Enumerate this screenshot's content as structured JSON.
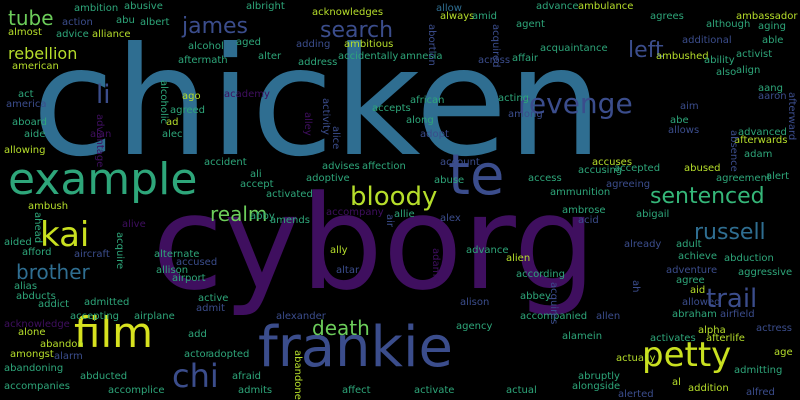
{
  "words": [
    {
      "text": "chicken",
      "size": 150,
      "color": "#2f6e91"
    },
    {
      "text": "cyborg",
      "size": 130,
      "color": "#3f0f5f"
    },
    {
      "text": "frankie",
      "size": 56,
      "color": "#3b4d8c"
    },
    {
      "text": "example",
      "size": 44,
      "color": "#2ea67a"
    },
    {
      "text": "te",
      "size": 56,
      "color": "#3b4d8c"
    },
    {
      "text": "revenge",
      "size": 28,
      "color": "#3b4d8c"
    },
    {
      "text": "film",
      "size": 42,
      "color": "#d7e21f"
    },
    {
      "text": "petty",
      "size": 34,
      "color": "#c9e020"
    },
    {
      "text": "bloody",
      "size": 26,
      "color": "#b6de2b"
    },
    {
      "text": "sentenced",
      "size": 22,
      "color": "#35b779"
    },
    {
      "text": "kai",
      "size": 34,
      "color": "#c9e020"
    },
    {
      "text": "chi",
      "size": 32,
      "color": "#3b4d8c"
    },
    {
      "text": "trail",
      "size": 26,
      "color": "#3b4d8c"
    },
    {
      "text": "search",
      "size": 22,
      "color": "#3b4d8c"
    },
    {
      "text": "james",
      "size": 22,
      "color": "#3b4d8c"
    },
    {
      "text": "russell",
      "size": 22,
      "color": "#2f6e91"
    },
    {
      "text": "realm",
      "size": 20,
      "color": "#6ccd5a"
    },
    {
      "text": "brother",
      "size": 20,
      "color": "#2f6e91"
    },
    {
      "text": "death",
      "size": 20,
      "color": "#6ccd5a"
    },
    {
      "text": "left",
      "size": 22,
      "color": "#3b4d8c"
    },
    {
      "text": "tube",
      "size": 20,
      "color": "#6ccd5a"
    },
    {
      "text": "rebellion",
      "size": 16,
      "color": "#b6de2b"
    },
    {
      "text": "li",
      "size": 26,
      "color": "#3b4d8c"
    },
    {
      "text": "ambulance",
      "size": 10,
      "color": "#b6de2b"
    },
    {
      "text": "ambition",
      "size": 10,
      "color": "#2ea67a"
    },
    {
      "text": "abusive",
      "size": 10,
      "color": "#2ea67a"
    },
    {
      "text": "albright",
      "size": 10,
      "color": "#2ea67a"
    },
    {
      "text": "acknowledges",
      "size": 10,
      "color": "#b6de2b"
    },
    {
      "text": "allow",
      "size": 10,
      "color": "#2f6e91"
    },
    {
      "text": "advance",
      "size": 10,
      "color": "#2ea67a"
    },
    {
      "text": "agrees",
      "size": 10,
      "color": "#2ea67a"
    },
    {
      "text": "ambassador",
      "size": 10,
      "color": "#b6de2b"
    },
    {
      "text": "action",
      "size": 10,
      "color": "#3b4d8c"
    },
    {
      "text": "abu",
      "size": 10,
      "color": "#2ea67a"
    },
    {
      "text": "albert",
      "size": 10,
      "color": "#2ea67a"
    },
    {
      "text": "always",
      "size": 10,
      "color": "#b6de2b"
    },
    {
      "text": "amid",
      "size": 10,
      "color": "#2ea67a"
    },
    {
      "text": "agent",
      "size": 10,
      "color": "#2ea67a"
    },
    {
      "text": "although",
      "size": 10,
      "color": "#2ea67a"
    },
    {
      "text": "aging",
      "size": 10,
      "color": "#2ea67a"
    },
    {
      "text": "almost",
      "size": 10,
      "color": "#b6de2b"
    },
    {
      "text": "advice",
      "size": 10,
      "color": "#2ea67a"
    },
    {
      "text": "alliance",
      "size": 10,
      "color": "#b6de2b"
    },
    {
      "text": "aged",
      "size": 10,
      "color": "#2ea67a"
    },
    {
      "text": "adding",
      "size": 10,
      "color": "#3b4d8c"
    },
    {
      "text": "ambitious",
      "size": 10,
      "color": "#b6de2b"
    },
    {
      "text": "additional",
      "size": 10,
      "color": "#3b4d8c"
    },
    {
      "text": "able",
      "size": 10,
      "color": "#2ea67a"
    },
    {
      "text": "alcohol",
      "size": 10,
      "color": "#2ea67a"
    },
    {
      "text": "acquaintance",
      "size": 10,
      "color": "#2ea67a"
    },
    {
      "text": "activist",
      "size": 10,
      "color": "#2ea67a"
    },
    {
      "text": "alter",
      "size": 10,
      "color": "#2ea67a"
    },
    {
      "text": "accidentally",
      "size": 10,
      "color": "#2ea67a"
    },
    {
      "text": "amnesia",
      "size": 10,
      "color": "#2ea67a"
    },
    {
      "text": "ambushed",
      "size": 10,
      "color": "#b6de2b"
    },
    {
      "text": "ability",
      "size": 10,
      "color": "#2ea67a"
    },
    {
      "text": "american",
      "size": 10,
      "color": "#b6de2b"
    },
    {
      "text": "aftermath",
      "size": 10,
      "color": "#2ea67a"
    },
    {
      "text": "address",
      "size": 10,
      "color": "#2ea67a"
    },
    {
      "text": "across",
      "size": 10,
      "color": "#3b4d8c"
    },
    {
      "text": "affair",
      "size": 10,
      "color": "#2ea67a"
    },
    {
      "text": "align",
      "size": 10,
      "color": "#2ea67a"
    },
    {
      "text": "also",
      "size": 10,
      "color": "#2ea67a"
    },
    {
      "text": "act",
      "size": 10,
      "color": "#2ea67a"
    },
    {
      "text": "america",
      "size": 10,
      "color": "#3b4d8c"
    },
    {
      "text": "ago",
      "size": 10,
      "color": "#b6de2b"
    },
    {
      "text": "academy",
      "size": 10,
      "color": "#3f0f5f"
    },
    {
      "text": "african",
      "size": 10,
      "color": "#2ea67a"
    },
    {
      "text": "acting",
      "size": 10,
      "color": "#2ea67a"
    },
    {
      "text": "aang",
      "size": 10,
      "color": "#2ea67a"
    },
    {
      "text": "aaron",
      "size": 10,
      "color": "#3b4d8c"
    },
    {
      "text": "agreed",
      "size": 10,
      "color": "#2ea67a"
    },
    {
      "text": "accepts",
      "size": 10,
      "color": "#2ea67a"
    },
    {
      "text": "among",
      "size": 10,
      "color": "#3b4d8c"
    },
    {
      "text": "aim",
      "size": 10,
      "color": "#3b4d8c"
    },
    {
      "text": "aboard",
      "size": 10,
      "color": "#2ea67a"
    },
    {
      "text": "ad",
      "size": 10,
      "color": "#b6de2b"
    },
    {
      "text": "along",
      "size": 10,
      "color": "#2ea67a"
    },
    {
      "text": "abe",
      "size": 10,
      "color": "#2ea67a"
    },
    {
      "text": "aide",
      "size": 10,
      "color": "#2ea67a"
    },
    {
      "text": "alan",
      "size": 10,
      "color": "#3f0f5f"
    },
    {
      "text": "alec",
      "size": 10,
      "color": "#2ea67a"
    },
    {
      "text": "adopt",
      "size": 10,
      "color": "#3b4d8c"
    },
    {
      "text": "allows",
      "size": 10,
      "color": "#3b4d8c"
    },
    {
      "text": "advanced",
      "size": 10,
      "color": "#2ea67a"
    },
    {
      "text": "allowing",
      "size": 10,
      "color": "#b6de2b"
    },
    {
      "text": "afterwards",
      "size": 10,
      "color": "#b6de2b"
    },
    {
      "text": "adam",
      "size": 10,
      "color": "#2ea67a"
    },
    {
      "text": "accident",
      "size": 10,
      "color": "#2ea67a"
    },
    {
      "text": "advises",
      "size": 10,
      "color": "#2ea67a"
    },
    {
      "text": "affection",
      "size": 10,
      "color": "#2ea67a"
    },
    {
      "text": "account",
      "size": 10,
      "color": "#3b4d8c"
    },
    {
      "text": "accuses",
      "size": 10,
      "color": "#b6de2b"
    },
    {
      "text": "accepted",
      "size": 10,
      "color": "#2ea67a"
    },
    {
      "text": "abused",
      "size": 10,
      "color": "#b6de2b"
    },
    {
      "text": "ali",
      "size": 10,
      "color": "#2ea67a"
    },
    {
      "text": "accusing",
      "size": 10,
      "color": "#2ea67a"
    },
    {
      "text": "agreeing",
      "size": 10,
      "color": "#3b4d8c"
    },
    {
      "text": "agreement",
      "size": 10,
      "color": "#2ea67a"
    },
    {
      "text": "alert",
      "size": 10,
      "color": "#2ea67a"
    },
    {
      "text": "accept",
      "size": 10,
      "color": "#2ea67a"
    },
    {
      "text": "adoptive",
      "size": 10,
      "color": "#2ea67a"
    },
    {
      "text": "abuse",
      "size": 10,
      "color": "#2ea67a"
    },
    {
      "text": "access",
      "size": 10,
      "color": "#2ea67a"
    },
    {
      "text": "ambush",
      "size": 10,
      "color": "#b6de2b"
    },
    {
      "text": "activated",
      "size": 10,
      "color": "#2ea67a"
    },
    {
      "text": "ammunition",
      "size": 10,
      "color": "#2ea67a"
    },
    {
      "text": "abby",
      "size": 10,
      "color": "#2ea67a"
    },
    {
      "text": "amends",
      "size": 10,
      "color": "#2ea67a"
    },
    {
      "text": "accompany",
      "size": 10,
      "color": "#3f0f5f"
    },
    {
      "text": "allie",
      "size": 10,
      "color": "#2ea67a"
    },
    {
      "text": "alex",
      "size": 10,
      "color": "#3b4d8c"
    },
    {
      "text": "ambrose",
      "size": 10,
      "color": "#2ea67a"
    },
    {
      "text": "abigail",
      "size": 10,
      "color": "#2ea67a"
    },
    {
      "text": "aided",
      "size": 10,
      "color": "#2ea67a"
    },
    {
      "text": "alive",
      "size": 10,
      "color": "#3f0f5f"
    },
    {
      "text": "acid",
      "size": 10,
      "color": "#3b4d8c"
    },
    {
      "text": "already",
      "size": 10,
      "color": "#3b4d8c"
    },
    {
      "text": "afford",
      "size": 10,
      "color": "#2ea67a"
    },
    {
      "text": "aircraft",
      "size": 10,
      "color": "#3b4d8c"
    },
    {
      "text": "alternate",
      "size": 10,
      "color": "#2ea67a"
    },
    {
      "text": "ally",
      "size": 10,
      "color": "#b6de2b"
    },
    {
      "text": "advance",
      "size": 10,
      "color": "#2ea67a"
    },
    {
      "text": "adult",
      "size": 10,
      "color": "#2ea67a"
    },
    {
      "text": "abduction",
      "size": 10,
      "color": "#2ea67a"
    },
    {
      "text": "achieve",
      "size": 10,
      "color": "#2ea67a"
    },
    {
      "text": "accused",
      "size": 10,
      "color": "#3b4d8c"
    },
    {
      "text": "alien",
      "size": 10,
      "color": "#b6de2b"
    },
    {
      "text": "alias",
      "size": 10,
      "color": "#2ea67a"
    },
    {
      "text": "allison",
      "size": 10,
      "color": "#2ea67a"
    },
    {
      "text": "altar",
      "size": 10,
      "color": "#3b4d8c"
    },
    {
      "text": "according",
      "size": 10,
      "color": "#2ea67a"
    },
    {
      "text": "adventure",
      "size": 10,
      "color": "#3b4d8c"
    },
    {
      "text": "aggressive",
      "size": 10,
      "color": "#2ea67a"
    },
    {
      "text": "abducts",
      "size": 10,
      "color": "#2ea67a"
    },
    {
      "text": "airport",
      "size": 10,
      "color": "#2ea67a"
    },
    {
      "text": "agree",
      "size": 10,
      "color": "#2ea67a"
    },
    {
      "text": "addict",
      "size": 10,
      "color": "#2ea67a"
    },
    {
      "text": "admitted",
      "size": 10,
      "color": "#2ea67a"
    },
    {
      "text": "active",
      "size": 10,
      "color": "#2ea67a"
    },
    {
      "text": "abbey",
      "size": 10,
      "color": "#2ea67a"
    },
    {
      "text": "aid",
      "size": 10,
      "color": "#b6de2b"
    },
    {
      "text": "allowed",
      "size": 10,
      "color": "#3b4d8c"
    },
    {
      "text": "admit",
      "size": 10,
      "color": "#3b4d8c"
    },
    {
      "text": "alison",
      "size": 10,
      "color": "#3b4d8c"
    },
    {
      "text": "abraham",
      "size": 10,
      "color": "#2ea67a"
    },
    {
      "text": "airfield",
      "size": 10,
      "color": "#3b4d8c"
    },
    {
      "text": "acknowledge",
      "size": 10,
      "color": "#3f0f5f"
    },
    {
      "text": "accepting",
      "size": 10,
      "color": "#2ea67a"
    },
    {
      "text": "airplane",
      "size": 10,
      "color": "#2ea67a"
    },
    {
      "text": "alexander",
      "size": 10,
      "color": "#3b4d8c"
    },
    {
      "text": "allen",
      "size": 10,
      "color": "#3b4d8c"
    },
    {
      "text": "alone",
      "size": 10,
      "color": "#b6de2b"
    },
    {
      "text": "add",
      "size": 10,
      "color": "#2ea67a"
    },
    {
      "text": "agency",
      "size": 10,
      "color": "#2ea67a"
    },
    {
      "text": "accompanied",
      "size": 10,
      "color": "#2ea67a"
    },
    {
      "text": "alpha",
      "size": 10,
      "color": "#b6de2b"
    },
    {
      "text": "actress",
      "size": 10,
      "color": "#3b4d8c"
    },
    {
      "text": "abandon",
      "size": 10,
      "color": "#b6de2b"
    },
    {
      "text": "alamein",
      "size": 10,
      "color": "#2ea67a"
    },
    {
      "text": "afterlife",
      "size": 10,
      "color": "#b6de2b"
    },
    {
      "text": "amongst",
      "size": 10,
      "color": "#b6de2b"
    },
    {
      "text": "alarm",
      "size": 10,
      "color": "#3b4d8c"
    },
    {
      "text": "actor",
      "size": 10,
      "color": "#2ea67a"
    },
    {
      "text": "adopted",
      "size": 10,
      "color": "#2ea67a"
    },
    {
      "text": "activates",
      "size": 10,
      "color": "#2ea67a"
    },
    {
      "text": "age",
      "size": 10,
      "color": "#b6de2b"
    },
    {
      "text": "abandoning",
      "size": 10,
      "color": "#2ea67a"
    },
    {
      "text": "actually",
      "size": 10,
      "color": "#b6de2b"
    },
    {
      "text": "admitting",
      "size": 10,
      "color": "#2ea67a"
    },
    {
      "text": "abducted",
      "size": 10,
      "color": "#2ea67a"
    },
    {
      "text": "afraid",
      "size": 10,
      "color": "#2ea67a"
    },
    {
      "text": "abruptly",
      "size": 10,
      "color": "#2ea67a"
    },
    {
      "text": "al",
      "size": 10,
      "color": "#b6de2b"
    },
    {
      "text": "addition",
      "size": 10,
      "color": "#b6de2b"
    },
    {
      "text": "accompanies",
      "size": 10,
      "color": "#2ea67a"
    },
    {
      "text": "accomplice",
      "size": 10,
      "color": "#2ea67a"
    },
    {
      "text": "admits",
      "size": 10,
      "color": "#2ea67a"
    },
    {
      "text": "affect",
      "size": 10,
      "color": "#2ea67a"
    },
    {
      "text": "activate",
      "size": 10,
      "color": "#2ea67a"
    },
    {
      "text": "actual",
      "size": 10,
      "color": "#2ea67a"
    },
    {
      "text": "alongside",
      "size": 10,
      "color": "#2ea67a"
    },
    {
      "text": "alerted",
      "size": 10,
      "color": "#3b4d8c"
    },
    {
      "text": "alfred",
      "size": 10,
      "color": "#3b4d8c"
    },
    {
      "text": "abortion",
      "size": 10,
      "color": "#3b4d8c"
    },
    {
      "text": "acquired",
      "size": 10,
      "color": "#3b4d8c"
    },
    {
      "text": "alcoholic",
      "size": 10,
      "color": "#2ea67a"
    },
    {
      "text": "alley",
      "size": 10,
      "color": "#3f0f5f"
    },
    {
      "text": "activity",
      "size": 10,
      "color": "#3b4d8c"
    },
    {
      "text": "alice",
      "size": 10,
      "color": "#3b4d8c"
    },
    {
      "text": "advantage",
      "size": 10,
      "color": "#3f0f5f"
    },
    {
      "text": "absence",
      "size": 10,
      "color": "#3b4d8c"
    },
    {
      "text": "afterward",
      "size": 10,
      "color": "#3b4d8c"
    },
    {
      "text": "ahead",
      "size": 10,
      "color": "#2ea67a"
    },
    {
      "text": "acquire",
      "size": 10,
      "color": "#2ea67a"
    },
    {
      "text": "air",
      "size": 10,
      "color": "#3b4d8c"
    },
    {
      "text": "ah",
      "size": 10,
      "color": "#3b4d8c"
    },
    {
      "text": "acquires",
      "size": 10,
      "color": "#3b4d8c"
    },
    {
      "text": "abandoned",
      "size": 10,
      "color": "#b6de2b"
    },
    {
      "text": "adamn",
      "size": 10,
      "color": "#3f0f5f"
    }
  ]
}
